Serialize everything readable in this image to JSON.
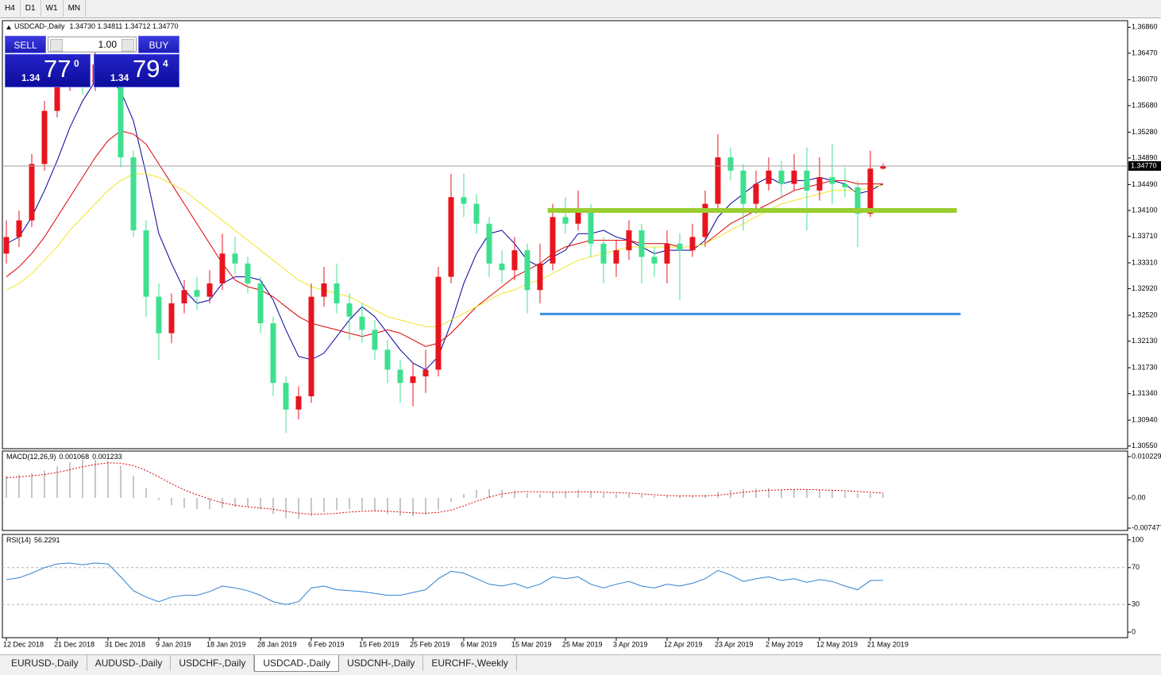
{
  "toolbar": {
    "timeframes": [
      "H4",
      "D1",
      "W1",
      "MN"
    ]
  },
  "trade_panel": {
    "sell": "SELL",
    "buy": "BUY",
    "volume": "1.00",
    "sell_price": {
      "big": "1.34",
      "pips": "77",
      "fraction": "0"
    },
    "buy_price": {
      "big": "1.34",
      "pips": "79",
      "fraction": "4"
    }
  },
  "chart_data": [
    {
      "type": "candlestick",
      "title": "USDCAD-,Daily",
      "quote": "1.34730 1.34811 1.34712 1.34770",
      "up_color": "#e8141e",
      "down_color": "#3ee08f",
      "categories": [
        "12 Dec 2018",
        null,
        null,
        null,
        "21 Dec 2018",
        null,
        null,
        null,
        "31 Dec 2018",
        null,
        null,
        null,
        "9 Jan 2019",
        null,
        null,
        null,
        "18 Jan 2019",
        null,
        null,
        null,
        "28 Jan 2019",
        null,
        null,
        null,
        "6 Feb 2019",
        null,
        null,
        null,
        "15 Feb 2019",
        null,
        null,
        null,
        "25 Feb 2019",
        null,
        null,
        null,
        "6 Mar 2019",
        null,
        null,
        null,
        "15 Mar 2019",
        null,
        null,
        null,
        "25 Mar 2019",
        null,
        null,
        null,
        "3 Apr 2019",
        null,
        null,
        null,
        "12 Apr 2019",
        null,
        null,
        null,
        "23 Apr 2019",
        null,
        null,
        null,
        "2 May 2019",
        null,
        null,
        null,
        "12 May 2019",
        null,
        null,
        null,
        "21 May 2019",
        null
      ],
      "open": [
        1.3345,
        1.337,
        1.3395,
        1.348,
        1.356,
        1.3605,
        1.3615,
        1.36,
        1.363,
        1.361,
        1.349,
        1.338,
        1.328,
        1.3225,
        1.327,
        1.329,
        1.328,
        1.33,
        1.3345,
        1.333,
        1.33,
        1.324,
        1.315,
        1.311,
        1.313,
        1.328,
        1.33,
        1.327,
        1.325,
        1.323,
        1.32,
        1.317,
        1.315,
        1.316,
        1.317,
        1.331,
        1.343,
        1.342,
        1.339,
        1.333,
        1.332,
        1.335,
        1.329,
        1.333,
        1.34,
        1.339,
        1.341,
        1.336,
        1.333,
        1.335,
        1.338,
        1.334,
        1.333,
        1.336,
        1.335,
        1.337,
        1.342,
        1.349,
        1.347,
        1.342,
        1.345,
        1.347,
        1.345,
        1.347,
        1.344,
        1.346,
        1.345,
        1.3445,
        1.3405,
        1.3473
      ],
      "high": [
        1.3395,
        1.341,
        1.3495,
        1.3575,
        1.3625,
        1.364,
        1.363,
        1.3655,
        1.3645,
        1.3625,
        1.35,
        1.3395,
        1.33,
        1.3285,
        1.3305,
        1.331,
        1.332,
        1.3375,
        1.337,
        1.334,
        1.331,
        1.325,
        1.316,
        1.3145,
        1.33,
        1.3325,
        1.333,
        1.3285,
        1.327,
        1.3245,
        1.3215,
        1.3185,
        1.318,
        1.32,
        1.3325,
        1.3465,
        1.3465,
        1.3435,
        1.34,
        1.335,
        1.337,
        1.336,
        1.336,
        1.342,
        1.343,
        1.344,
        1.342,
        1.337,
        1.3365,
        1.3395,
        1.339,
        1.3355,
        1.338,
        1.3375,
        1.339,
        1.344,
        1.3525,
        1.3505,
        1.348,
        1.347,
        1.349,
        1.3485,
        1.3495,
        1.3505,
        1.349,
        1.351,
        1.3475,
        1.3455,
        1.35,
        1.34811
      ],
      "low": [
        1.333,
        1.3355,
        1.3385,
        1.347,
        1.355,
        1.359,
        1.3585,
        1.359,
        1.3595,
        1.3475,
        1.337,
        1.325,
        1.3185,
        1.321,
        1.3255,
        1.326,
        1.327,
        1.329,
        1.3315,
        1.3285,
        1.3225,
        1.313,
        1.3075,
        1.3095,
        1.312,
        1.3265,
        1.3255,
        1.3215,
        1.321,
        1.3185,
        1.315,
        1.312,
        1.3115,
        1.3135,
        1.316,
        1.33,
        1.34,
        1.3375,
        1.331,
        1.33,
        1.3305,
        1.3255,
        1.327,
        1.332,
        1.3375,
        1.338,
        1.334,
        1.33,
        1.331,
        1.3335,
        1.33,
        1.331,
        1.33,
        1.3275,
        1.334,
        1.3355,
        1.341,
        1.3455,
        1.338,
        1.3405,
        1.344,
        1.343,
        1.344,
        1.338,
        1.3425,
        1.342,
        1.343,
        1.3355,
        1.34,
        1.34712
      ],
      "close": [
        1.337,
        1.3395,
        1.348,
        1.356,
        1.3605,
        1.3615,
        1.36,
        1.363,
        1.361,
        1.349,
        1.338,
        1.328,
        1.3225,
        1.327,
        1.329,
        1.328,
        1.33,
        1.3345,
        1.333,
        1.33,
        1.324,
        1.315,
        1.311,
        1.313,
        1.328,
        1.33,
        1.327,
        1.325,
        1.323,
        1.32,
        1.317,
        1.315,
        1.316,
        1.317,
        1.331,
        1.343,
        1.342,
        1.339,
        1.333,
        1.332,
        1.335,
        1.329,
        1.333,
        1.34,
        1.339,
        1.341,
        1.336,
        1.333,
        1.335,
        1.338,
        1.334,
        1.333,
        1.336,
        1.335,
        1.337,
        1.342,
        1.349,
        1.347,
        1.342,
        1.345,
        1.347,
        1.345,
        1.347,
        1.344,
        1.346,
        1.345,
        1.3445,
        1.3405,
        1.3473,
        1.3477
      ],
      "series": [
        {
          "color": "#0000a0",
          "values": [
            1.336,
            1.337,
            1.34,
            1.344,
            1.3485,
            1.3535,
            1.3575,
            1.3605,
            1.361,
            1.359,
            1.3545,
            1.3465,
            1.3375,
            1.333,
            1.329,
            1.327,
            1.3275,
            1.33,
            1.331,
            1.331,
            1.3305,
            1.3275,
            1.323,
            1.319,
            1.3185,
            1.3195,
            1.322,
            1.3245,
            1.3265,
            1.325,
            1.3225,
            1.32,
            1.318,
            1.317,
            1.319,
            1.324,
            1.33,
            1.3345,
            1.3375,
            1.338,
            1.336,
            1.3335,
            1.3325,
            1.334,
            1.335,
            1.3375,
            1.3375,
            1.338,
            1.337,
            1.3365,
            1.3355,
            1.3345,
            1.335,
            1.335,
            1.335,
            1.3365,
            1.34,
            1.342,
            1.3435,
            1.345,
            1.346,
            1.345,
            1.3455,
            1.3455,
            1.346,
            1.3455,
            1.345,
            1.3435,
            1.344,
            1.345
          ]
        },
        {
          "color": "#dd0000",
          "values": [
            1.331,
            1.3325,
            1.3345,
            1.337,
            1.34,
            1.343,
            1.346,
            1.349,
            1.3515,
            1.353,
            1.3525,
            1.351,
            1.348,
            1.345,
            1.342,
            1.339,
            1.336,
            1.333,
            1.3305,
            1.3295,
            1.329,
            1.328,
            1.3265,
            1.325,
            1.324,
            1.3235,
            1.323,
            1.3225,
            1.322,
            1.3225,
            1.323,
            1.3225,
            1.3215,
            1.3205,
            1.321,
            1.3225,
            1.3245,
            1.3265,
            1.328,
            1.3295,
            1.331,
            1.332,
            1.333,
            1.3345,
            1.3355,
            1.336,
            1.3365,
            1.3365,
            1.3365,
            1.3365,
            1.336,
            1.336,
            1.336,
            1.3355,
            1.3355,
            1.336,
            1.3375,
            1.339,
            1.34,
            1.341,
            1.342,
            1.343,
            1.344,
            1.3445,
            1.345,
            1.3455,
            1.3455,
            1.345,
            1.345,
            1.345
          ]
        },
        {
          "color": "#f2e526",
          "values": [
            1.329,
            1.33,
            1.3315,
            1.3335,
            1.3355,
            1.338,
            1.34,
            1.342,
            1.344,
            1.3455,
            1.3465,
            1.3465,
            1.346,
            1.345,
            1.344,
            1.3425,
            1.341,
            1.3395,
            1.338,
            1.3365,
            1.335,
            1.3335,
            1.332,
            1.3305,
            1.3295,
            1.329,
            1.3285,
            1.328,
            1.327,
            1.326,
            1.325,
            1.3245,
            1.324,
            1.3235,
            1.3235,
            1.3245,
            1.3255,
            1.3265,
            1.3275,
            1.3285,
            1.329,
            1.33,
            1.3305,
            1.3315,
            1.3325,
            1.3335,
            1.334,
            1.3345,
            1.335,
            1.3355,
            1.3355,
            1.3355,
            1.3355,
            1.3355,
            1.3355,
            1.336,
            1.337,
            1.338,
            1.339,
            1.34,
            1.341,
            1.342,
            1.3425,
            1.343,
            1.3435,
            1.344,
            1.344,
            1.344,
            1.3445,
            1.3448
          ]
        }
      ],
      "levels": [
        {
          "value": 1.341,
          "color": "#9acd32",
          "x": [
            42.6,
            74.8
          ]
        },
        {
          "value": 1.3254,
          "color": "#3b8fe0",
          "x": [
            42,
            75.1
          ]
        }
      ],
      "last_price": {
        "value": 1.3477,
        "label": "1.34770"
      },
      "ylim": [
        1.3051,
        1.3696
      ],
      "yticks": [
        {
          "value": 1.3686,
          "label": "1.36860"
        },
        {
          "value": 1.3647,
          "label": "1.36470"
        },
        {
          "value": 1.3607,
          "label": "1.36070"
        },
        {
          "value": 1.3568,
          "label": "1.35680"
        },
        {
          "value": 1.3528,
          "label": "1.35280"
        },
        {
          "value": 1.3489,
          "label": "1.34890"
        },
        {
          "value": 1.3449,
          "label": "1.34490"
        },
        {
          "value": 1.341,
          "label": "1.34100"
        },
        {
          "value": 1.3371,
          "label": "1.33710"
        },
        {
          "value": 1.3331,
          "label": "1.33310"
        },
        {
          "value": 1.3292,
          "label": "1.32920"
        },
        {
          "value": 1.3252,
          "label": "1.32520"
        },
        {
          "value": 1.3213,
          "label": "1.32130"
        },
        {
          "value": 1.3173,
          "label": "1.31730"
        },
        {
          "value": 1.3134,
          "label": "1.31340"
        },
        {
          "value": 1.3094,
          "label": "1.30940"
        },
        {
          "value": 1.3055,
          "label": "1.30550"
        }
      ]
    },
    {
      "type": "macd",
      "title": "MACD(12,26,9)",
      "series": [
        {
          "color": "#b4b4b4",
          "style": "histogram",
          "values": [
            0.0055,
            0.0058,
            0.0062,
            0.0068,
            0.0078,
            0.0088,
            0.0095,
            0.0095,
            0.0092,
            0.008,
            0.0055,
            0.0025,
            -0.0005,
            -0.0018,
            -0.0025,
            -0.0028,
            -0.0028,
            -0.0025,
            -0.0022,
            -0.0022,
            -0.0028,
            -0.004,
            -0.005,
            -0.0052,
            -0.0045,
            -0.0035,
            -0.003,
            -0.0028,
            -0.003,
            -0.0033,
            -0.004,
            -0.0045,
            -0.0045,
            -0.0042,
            -0.003,
            -0.001,
            0.001,
            0.002,
            0.0022,
            0.002,
            0.0018,
            0.0012,
            0.001,
            0.0015,
            0.0017,
            0.002,
            0.0017,
            0.0012,
            0.001,
            0.001,
            0.0008,
            0.0005,
            0.0005,
            0.0004,
            0.0005,
            0.0008,
            0.0015,
            0.002,
            0.0022,
            0.0023,
            0.0025,
            0.0022,
            0.0022,
            0.002,
            0.002,
            0.0018,
            0.0015,
            0.0011,
            0.0011,
            0.001068
          ]
        },
        {
          "color": "#e00000",
          "style": "dotted",
          "values": [
            0.005,
            0.0052,
            0.0055,
            0.0058,
            0.0063,
            0.007,
            0.0077,
            0.0083,
            0.0087,
            0.0086,
            0.008,
            0.0068,
            0.0052,
            0.0035,
            0.002,
            0.0008,
            -0.0003,
            -0.0012,
            -0.0018,
            -0.0022,
            -0.0025,
            -0.0028,
            -0.0033,
            -0.0038,
            -0.004,
            -0.004,
            -0.0038,
            -0.0035,
            -0.0033,
            -0.0032,
            -0.0033,
            -0.0035,
            -0.0037,
            -0.0038,
            -0.0036,
            -0.003,
            -0.002,
            -0.0008,
            0.0002,
            0.001,
            0.0014,
            0.0016,
            0.0015,
            0.0014,
            0.0014,
            0.0015,
            0.0015,
            0.0014,
            0.0013,
            0.0012,
            0.001,
            0.0008,
            0.0006,
            0.0005,
            0.0005,
            0.0005,
            0.0007,
            0.001,
            0.0014,
            0.0017,
            0.0019,
            0.002,
            0.0021,
            0.0021,
            0.002,
            0.0019,
            0.0018,
            0.0016,
            0.0014,
            0.001233
          ]
        }
      ],
      "ylim": [
        -0.00806,
        0.01161
      ],
      "yticks": [
        0.010229,
        {
          "value": 0,
          "label": "0.00"
        },
        -0.007477
      ]
    },
    {
      "type": "line",
      "title": "RSI(14)",
      "series": [
        {
          "color": "#2f80d0",
          "values": [
            57,
            59,
            64,
            70,
            74,
            75,
            73,
            75,
            74,
            60,
            45,
            38,
            33,
            38,
            40,
            40,
            44,
            50,
            48,
            45,
            40,
            33,
            30,
            33,
            48,
            50,
            46,
            45,
            44,
            42,
            40,
            40,
            43,
            46,
            58,
            66,
            64,
            58,
            52,
            50,
            53,
            48,
            52,
            60,
            58,
            60,
            52,
            48,
            52,
            55,
            50,
            48,
            52,
            50,
            53,
            58,
            67,
            62,
            55,
            58,
            60,
            56,
            58,
            54,
            57,
            55,
            50,
            46,
            56,
            56.2291
          ]
        }
      ],
      "levels": [
        70,
        30
      ],
      "ylim": [
        -6,
        106
      ],
      "yticks": [
        100,
        70,
        30,
        0
      ]
    }
  ],
  "tabs": [
    "EURUSD-,Daily",
    "AUDUSD-,Daily",
    "USDCHF-,Daily",
    "USDCAD-,Daily",
    "USDCNH-,Daily",
    "EURCHF-,Weekly"
  ],
  "active_tab": 3
}
